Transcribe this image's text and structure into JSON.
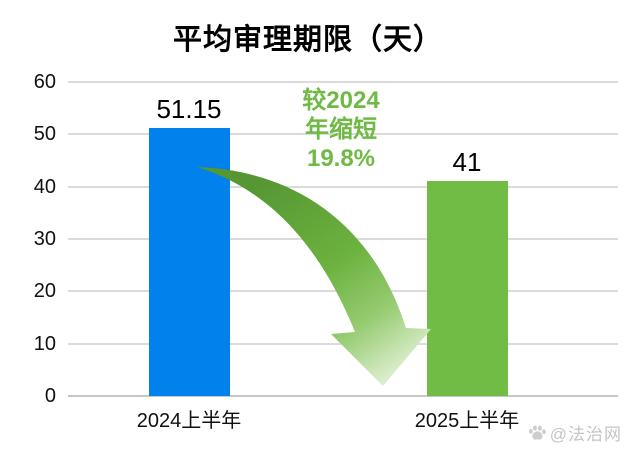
{
  "title": "平均审理期限（天）",
  "chart_data": {
    "type": "bar",
    "title": "平均审理期限（天）",
    "categories": [
      "2024上半年",
      "2025上半年"
    ],
    "values": [
      51.15,
      41
    ],
    "value_labels": [
      "51.15",
      "41"
    ],
    "bar_colors": [
      "#0081EC",
      "#71BC45"
    ],
    "ylim": [
      0,
      60
    ],
    "yticks": [
      0,
      10,
      20,
      30,
      40,
      50,
      60
    ],
    "grid": true,
    "legend": false,
    "annotation": {
      "lines": [
        "较2024",
        "年缩短",
        "19.8%"
      ],
      "text": "较2024年缩短19.8%",
      "color": "#6FBA44",
      "arrow": "curved green arrow from 2024 bar down to 2025 bar"
    }
  },
  "watermark": {
    "icon": "paw-icon",
    "text": "@法治网",
    "color": "#C5C5C5"
  },
  "colors": {
    "background": "#FFFFFF",
    "gridline": "#DBDBDB",
    "axis_line": "#C6C6C6",
    "bar_2024": "#0081EC",
    "bar_2025": "#71BC45",
    "annotation_green": "#6FBA44",
    "arrow_green_dark": "#569733",
    "arrow_green": "#6CB23F",
    "arrow_tip_light": "#E4F2DA",
    "text": "#111111"
  }
}
